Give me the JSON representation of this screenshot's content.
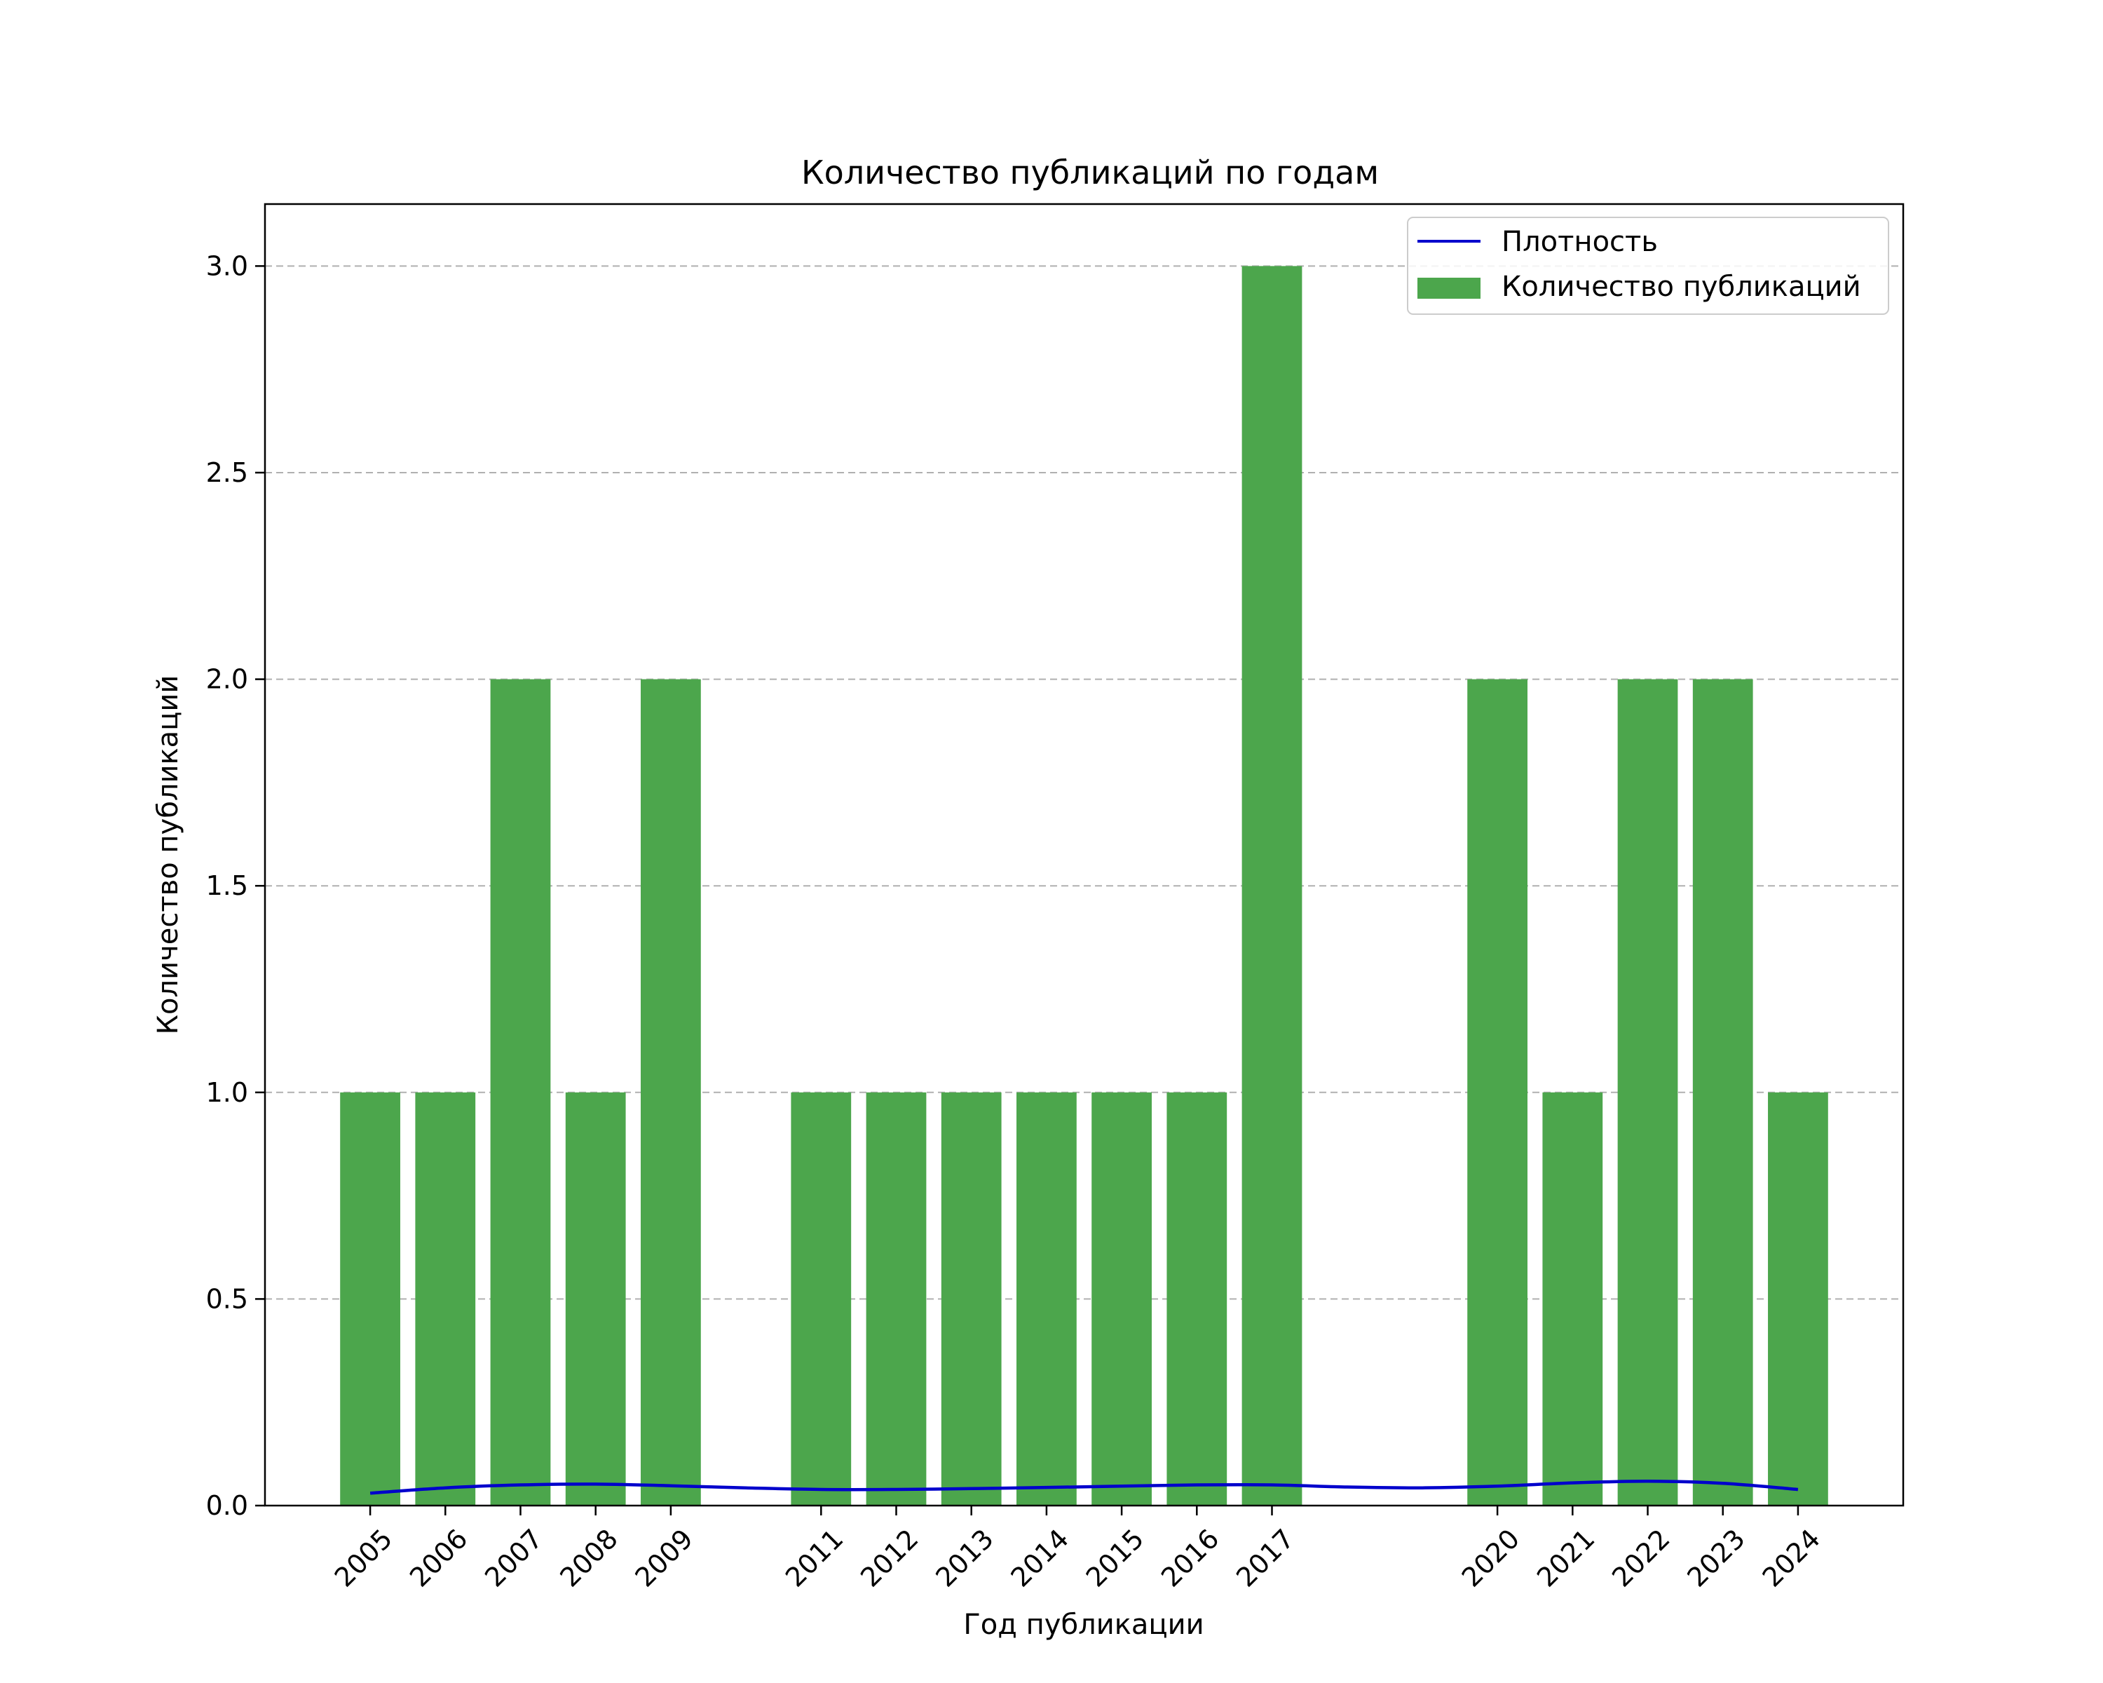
{
  "chart_data": {
    "type": "bar",
    "title": "Количество публикаций по годам",
    "xlabel": "Год публикации",
    "ylabel": "Количество публикаций",
    "x_range": [
      2003.6,
      2025.4
    ],
    "ylim": [
      0,
      3.15
    ],
    "yticks": [
      "0.0",
      "0.5",
      "1.0",
      "1.5",
      "2.0",
      "2.5",
      "3.0"
    ],
    "grid": "y-dashed",
    "legend_position": "top-right",
    "categories": [
      "2005",
      "2006",
      "2007",
      "2008",
      "2009",
      "2011",
      "2012",
      "2013",
      "2014",
      "2015",
      "2016",
      "2017",
      "2020",
      "2021",
      "2022",
      "2023",
      "2024"
    ],
    "series": [
      {
        "name": "Количество публикаций",
        "kind": "bar",
        "color": "#4CA64C",
        "values": [
          1,
          1,
          2,
          1,
          2,
          1,
          1,
          1,
          1,
          1,
          1,
          3,
          2,
          1,
          2,
          2,
          1
        ]
      },
      {
        "name": "Плотность",
        "kind": "line",
        "color": "#0000CC",
        "x": [
          2005,
          2006,
          2007,
          2008,
          2009,
          2010,
          2011,
          2012,
          2013,
          2014,
          2015,
          2016,
          2017,
          2018,
          2019,
          2020,
          2021,
          2022,
          2023,
          2024
        ],
        "y": [
          0.03,
          0.043,
          0.05,
          0.052,
          0.048,
          0.043,
          0.039,
          0.039,
          0.041,
          0.044,
          0.047,
          0.05,
          0.05,
          0.045,
          0.043,
          0.047,
          0.055,
          0.059,
          0.054,
          0.039
        ]
      }
    ]
  }
}
